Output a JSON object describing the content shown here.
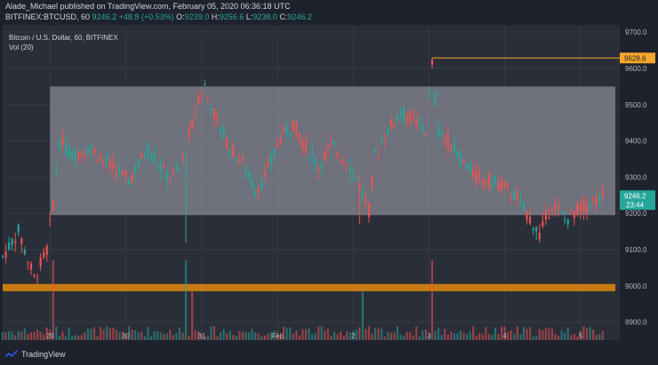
{
  "header": {
    "publisher_line": "Alade_Michael published on TradingView.com, February 05, 2020 06:36:18 UTC",
    "symbol": "BITFINEX:BTCUSD, 60",
    "last": "9246.2",
    "change": "+48.8 (+0.53%)",
    "o_label": "O:",
    "o_value": "9239.0",
    "h_label": "H:",
    "h_value": "9256.6",
    "l_label": "L:",
    "l_value": "9238.0",
    "c_label": "C:",
    "c_value": "9246.2"
  },
  "legend": {
    "title": "Bitcoin / U.S. Dollar, 60, BITFINEX",
    "volume": "Vol (20)"
  },
  "footer": {
    "brand": "TradingView"
  },
  "colors": {
    "up": "#26a69a",
    "down": "#ef5350",
    "range_box": "#787b86",
    "support_band": "#c77b12",
    "high_line": "#f7a72a"
  },
  "chart_data": {
    "type": "candlestick",
    "y_axis": {
      "min": 8850,
      "max": 9720,
      "ticks": [
        8900,
        9000,
        9100,
        9200,
        9300,
        9400,
        9500,
        9600,
        9700
      ],
      "tick_labels": [
        "8900.0",
        "9000.0",
        "9100.0",
        "9200.0",
        "9300.0",
        "9400.0",
        "9500.0",
        "9600.0",
        "9700.0"
      ]
    },
    "x_axis": {
      "hours_total": 182,
      "ticks": [
        {
          "label": "29",
          "hour": 15
        },
        {
          "label": "30",
          "hour": 39
        },
        {
          "label": "31",
          "hour": 63
        },
        {
          "label": "Feb",
          "hour": 87
        },
        {
          "label": "2",
          "hour": 111
        },
        {
          "label": "3",
          "hour": 135
        },
        {
          "label": "4",
          "hour": 159
        },
        {
          "label": "5",
          "hour": 183
        }
      ]
    },
    "price_label": {
      "value": "9246.2",
      "countdown": "23:44"
    },
    "high_label": {
      "value": "9628.6"
    },
    "range_box": {
      "from_hour": 15,
      "to_hour": 194,
      "low": 9195,
      "high": 9550
    },
    "support_band": {
      "low": 8985,
      "high": 9005
    },
    "key_points": [
      [
        0,
        9080
      ],
      [
        5,
        9150
      ],
      [
        10,
        9020
      ],
      [
        14,
        9100
      ],
      [
        16,
        9230
      ],
      [
        18,
        9400
      ],
      [
        22,
        9360
      ],
      [
        28,
        9380
      ],
      [
        34,
        9330
      ],
      [
        40,
        9290
      ],
      [
        46,
        9380
      ],
      [
        52,
        9300
      ],
      [
        56,
        9320
      ],
      [
        60,
        9440
      ],
      [
        62,
        9520
      ],
      [
        64,
        9550
      ],
      [
        68,
        9450
      ],
      [
        72,
        9380
      ],
      [
        76,
        9340
      ],
      [
        80,
        9260
      ],
      [
        84,
        9320
      ],
      [
        88,
        9410
      ],
      [
        92,
        9450
      ],
      [
        96,
        9380
      ],
      [
        100,
        9330
      ],
      [
        104,
        9390
      ],
      [
        108,
        9350
      ],
      [
        112,
        9300
      ],
      [
        116,
        9210
      ],
      [
        118,
        9360
      ],
      [
        122,
        9430
      ],
      [
        126,
        9480
      ],
      [
        130,
        9460
      ],
      [
        134,
        9430
      ],
      [
        136,
        9610
      ],
      [
        138,
        9430
      ],
      [
        142,
        9390
      ],
      [
        146,
        9340
      ],
      [
        150,
        9300
      ],
      [
        154,
        9290
      ],
      [
        158,
        9280
      ],
      [
        162,
        9250
      ],
      [
        166,
        9200
      ],
      [
        170,
        9140
      ],
      [
        174,
        9230
      ],
      [
        178,
        9180
      ],
      [
        182,
        9210
      ],
      [
        186,
        9230
      ],
      [
        190,
        9246
      ]
    ]
  }
}
